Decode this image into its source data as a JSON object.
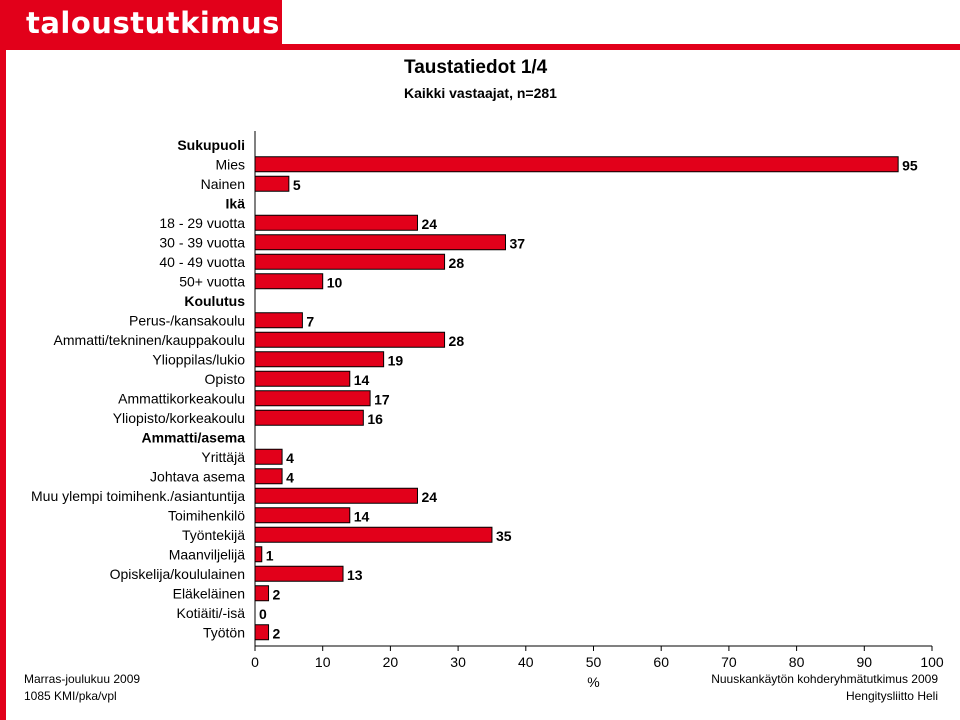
{
  "logo": {
    "text": "taloustutkimus oy"
  },
  "header": {
    "title": "Taustatiedot  1/4",
    "subtitle": "Kaikki vastaajat, n=281"
  },
  "footer": {
    "left_line1": "Marras-joulukuu 2009",
    "left_line2": "1085 KMI/pka/vpl",
    "right_line1": "Nuuskankäytön kohderyhmätutkimus 2009",
    "right_line2": "Hengitysliitto Heli"
  },
  "colors": {
    "brand": "#e2001a",
    "bar": "#e2001a"
  },
  "chart_data": {
    "type": "bar",
    "orientation": "horizontal",
    "xlabel": "%",
    "xlim": [
      0,
      100
    ],
    "xticks": [
      0,
      10,
      20,
      30,
      40,
      50,
      60,
      70,
      80,
      90,
      100
    ],
    "grid": false,
    "rows": [
      {
        "label": "Sukupuoli",
        "heading": true
      },
      {
        "label": "Mies",
        "value": 95
      },
      {
        "label": "Nainen",
        "value": 5
      },
      {
        "label": "Ikä",
        "heading": true
      },
      {
        "label": "18 - 29 vuotta",
        "value": 24
      },
      {
        "label": "30 - 39 vuotta",
        "value": 37
      },
      {
        "label": "40 - 49 vuotta",
        "value": 28
      },
      {
        "label": "50+ vuotta",
        "value": 10
      },
      {
        "label": "Koulutus",
        "heading": true
      },
      {
        "label": "Perus-/kansakoulu",
        "value": 7
      },
      {
        "label": "Ammatti/tekninen/kauppakoulu",
        "value": 28
      },
      {
        "label": "Ylioppilas/lukio",
        "value": 19
      },
      {
        "label": "Opisto",
        "value": 14
      },
      {
        "label": "Ammattikorkeakoulu",
        "value": 17
      },
      {
        "label": "Yliopisto/korkeakoulu",
        "value": 16
      },
      {
        "label": "Ammatti/asema",
        "heading": true
      },
      {
        "label": "Yrittäjä",
        "value": 4
      },
      {
        "label": "Johtava asema",
        "value": 4
      },
      {
        "label": "Muu ylempi toimihenk./asiantuntija",
        "value": 24
      },
      {
        "label": "Toimihenkilö",
        "value": 14
      },
      {
        "label": "Työntekijä",
        "value": 35
      },
      {
        "label": "Maanviljelijä",
        "value": 1
      },
      {
        "label": "Opiskelija/koululainen",
        "value": 13
      },
      {
        "label": "Eläkeläinen",
        "value": 2
      },
      {
        "label": "Kotiäiti/-isä",
        "value": 0
      },
      {
        "label": "Työtön",
        "value": 2
      }
    ]
  }
}
